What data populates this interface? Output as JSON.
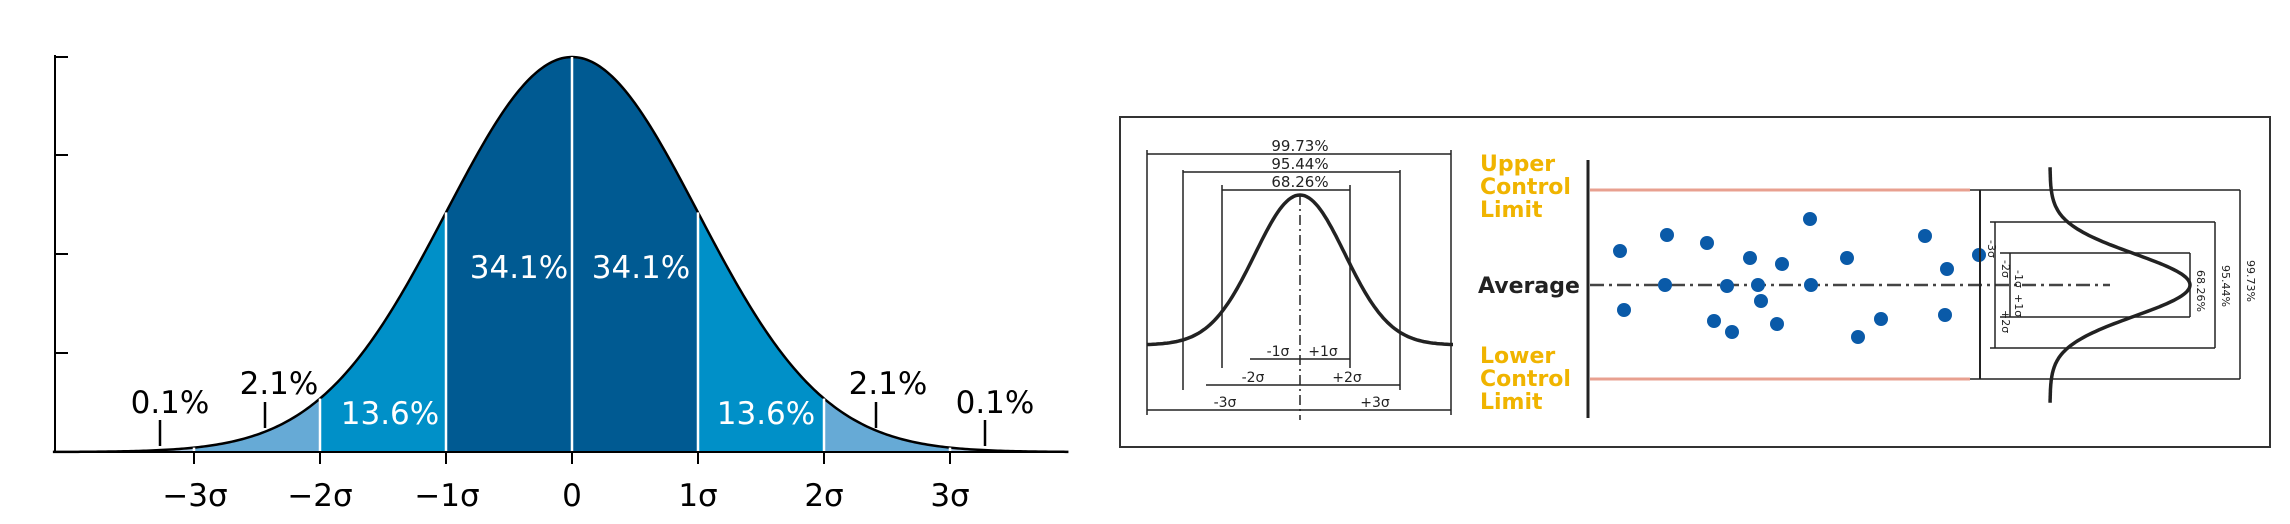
{
  "normal_figure": {
    "x_tick_labels": [
      "−3σ",
      "−2σ",
      "−1σ",
      "0",
      "1σ",
      "2σ",
      "3σ"
    ],
    "region_labels": [
      {
        "text": "34.1%",
        "region": "-1to0"
      },
      {
        "text": "34.1%",
        "region": "0to1"
      },
      {
        "text": "13.6%",
        "region": "-2to-1"
      },
      {
        "text": "13.6%",
        "region": "1to2"
      },
      {
        "text": "2.1%",
        "region": "-3to-2"
      },
      {
        "text": "2.1%",
        "region": "2to3"
      },
      {
        "text": "0.1%",
        "region": "below-3"
      },
      {
        "text": "0.1%",
        "region": "above3"
      }
    ],
    "colors": {
      "band1": "#005a92",
      "band2": "#0090c8",
      "band3": "#66aad6",
      "band4": "#a9c7e2",
      "curve": "#000000",
      "divider": "#ffffff"
    }
  },
  "control_chart": {
    "bell_percentages": [
      "99.73%",
      "95.44%",
      "68.26%"
    ],
    "sigma_labels_left": [
      "-1σ",
      "+1σ",
      "-2σ",
      "+2σ",
      "-3σ",
      "+3σ"
    ],
    "upper_label": [
      "Upper",
      "Control",
      "Limit"
    ],
    "average_label": "Average",
    "lower_label": [
      "Lower",
      "Control",
      "Limit"
    ],
    "right_sigma_labels": [
      "-3σ",
      "-2σ",
      "-1σ",
      "+1σ",
      "+2σ"
    ],
    "right_percentages": [
      "68.26%",
      "95.44%",
      "99.73%"
    ],
    "colors": {
      "limit_label": "#f0b400",
      "limit_line": "#e8a090",
      "dot": "#0a5aa8",
      "frame": "#333333"
    }
  }
}
